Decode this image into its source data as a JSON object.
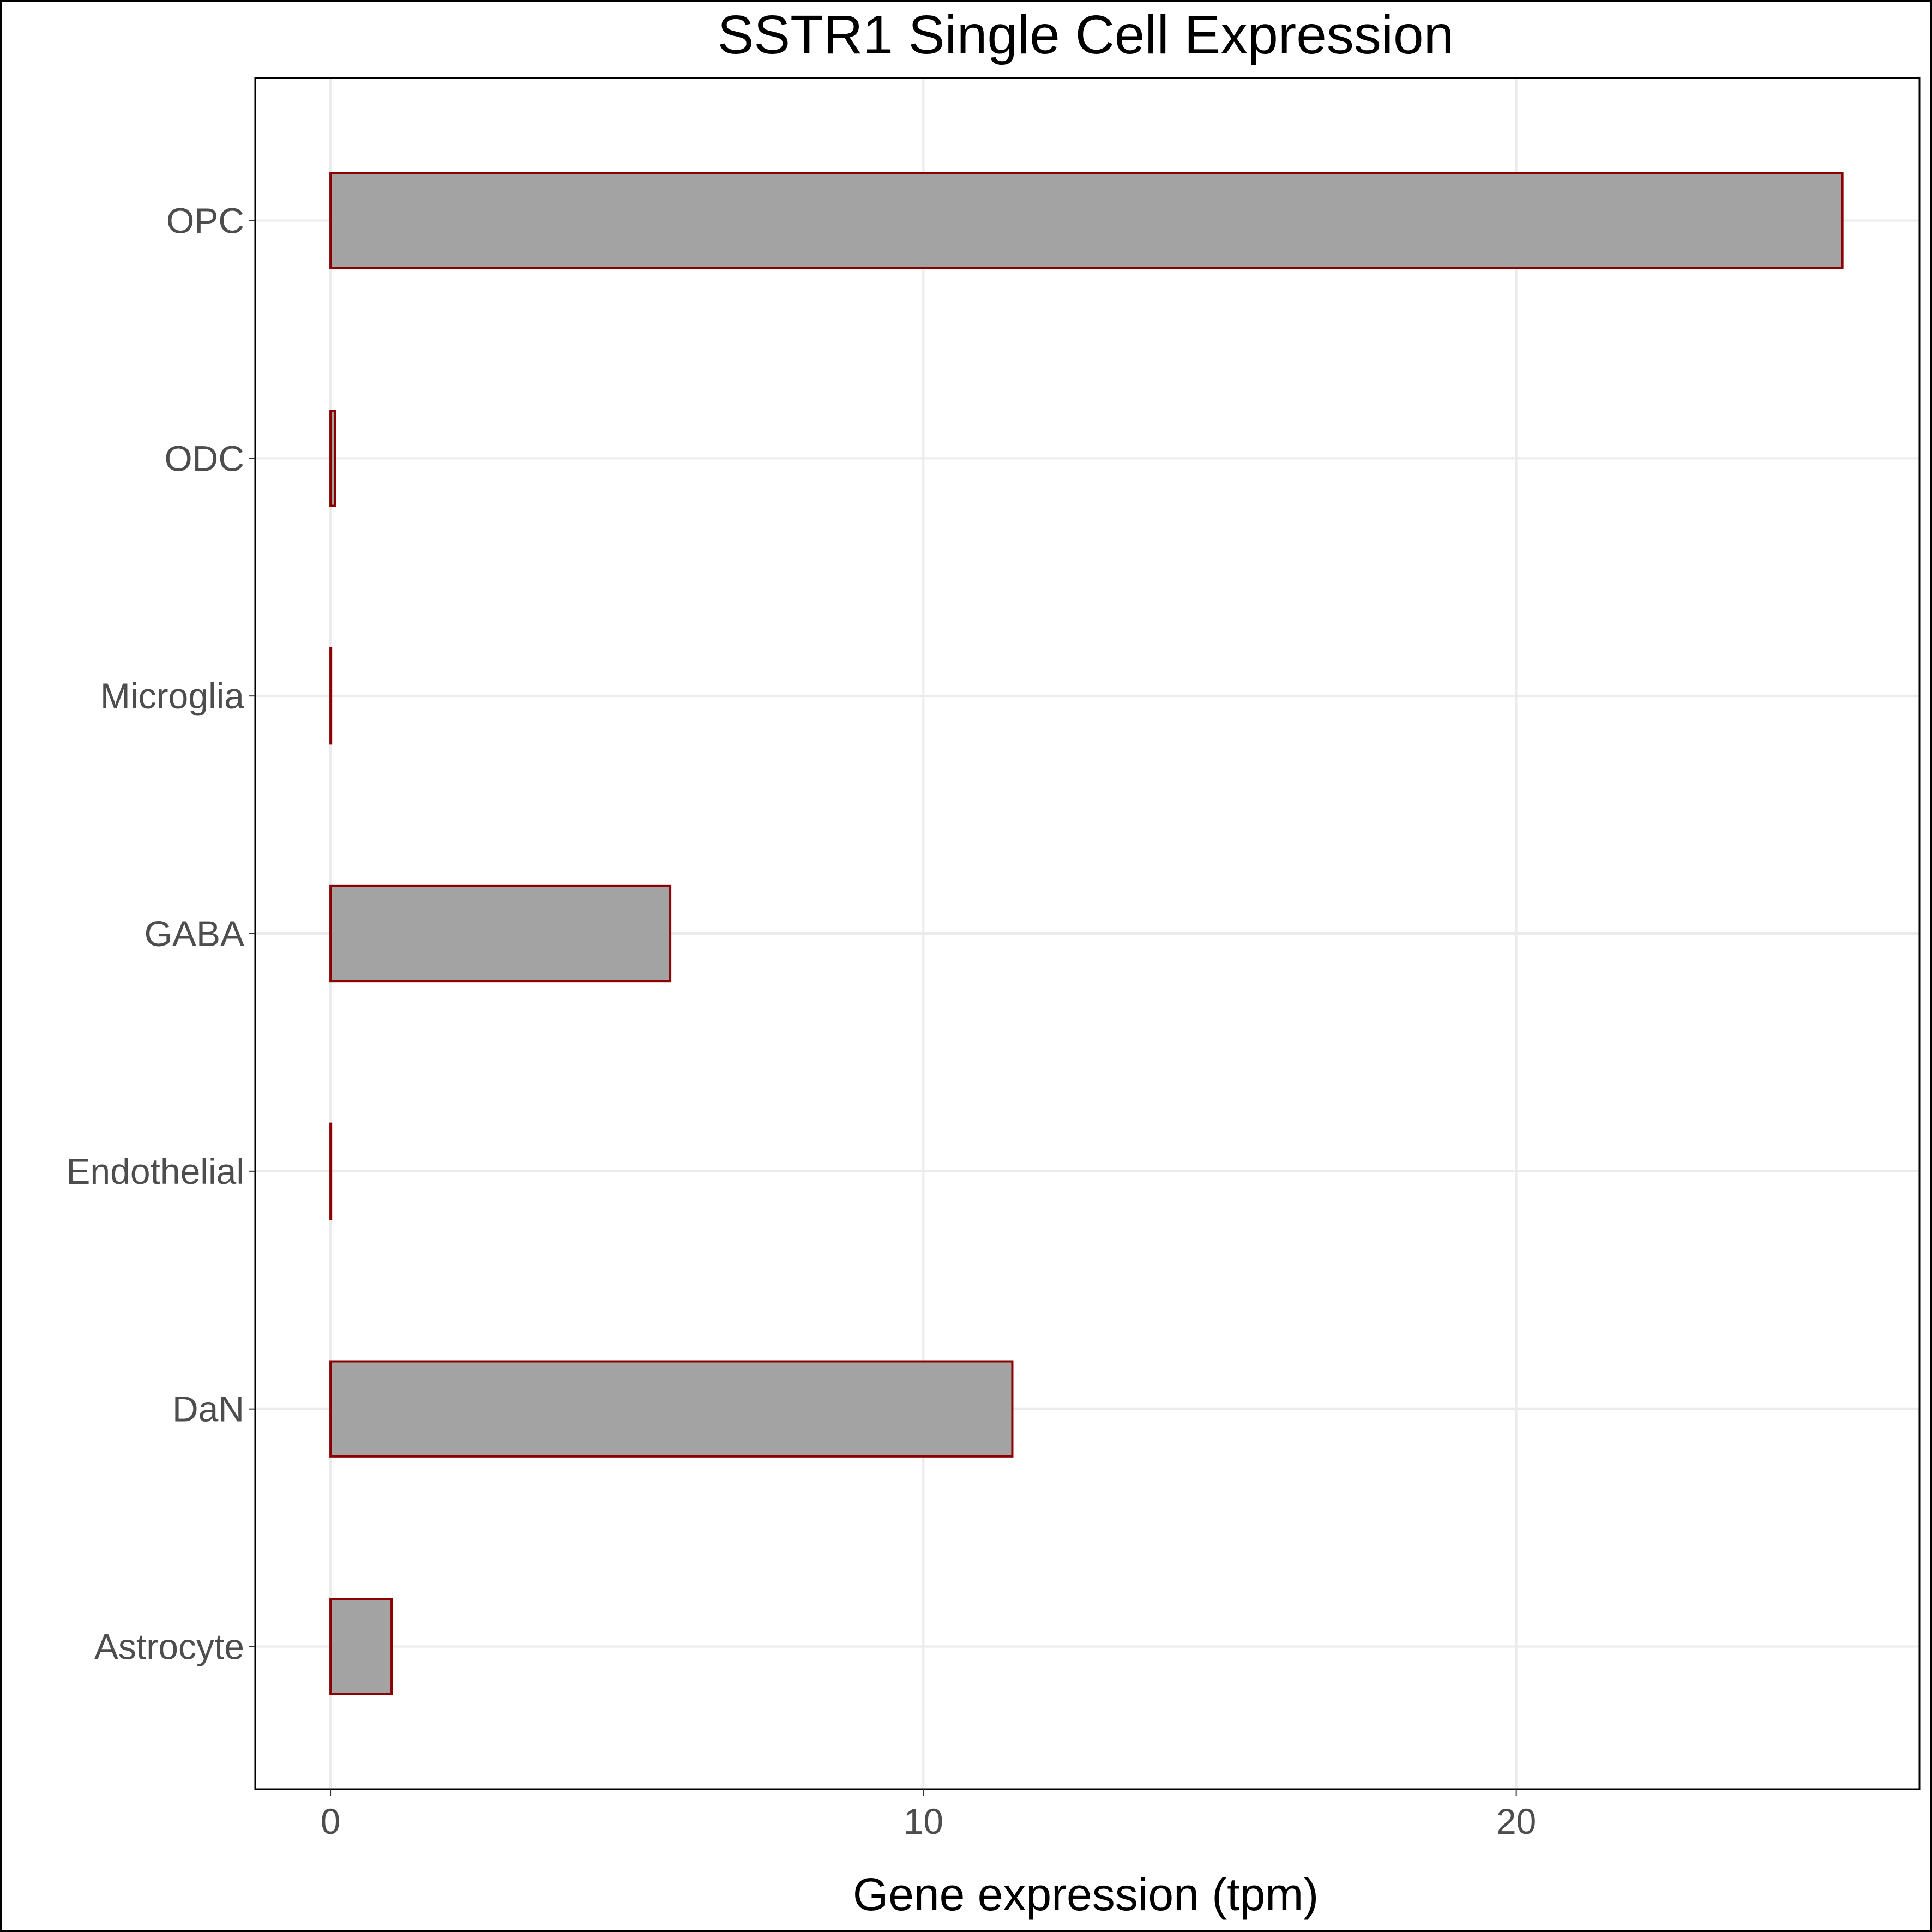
{
  "chart_data": {
    "type": "bar",
    "orientation": "horizontal",
    "title": "SSTR1 Single Cell Expression",
    "xlabel": "Gene expression (tpm)",
    "ylabel": "",
    "categories": [
      "Astrocyte",
      "DaN",
      "Endothelial",
      "GABA",
      "Microglia",
      "ODC",
      "OPC"
    ],
    "values": [
      1.03,
      11.5,
      0.01,
      5.73,
      0.01,
      0.08,
      25.5
    ],
    "xlim": [
      -1.27,
      26.8
    ],
    "xticks": [
      0,
      10,
      20
    ],
    "grid": true,
    "legend": "none",
    "colors": {
      "bar_fill": "#a3a3a3",
      "bar_outline": "#8b0000",
      "grid": "#ebebeb"
    }
  }
}
